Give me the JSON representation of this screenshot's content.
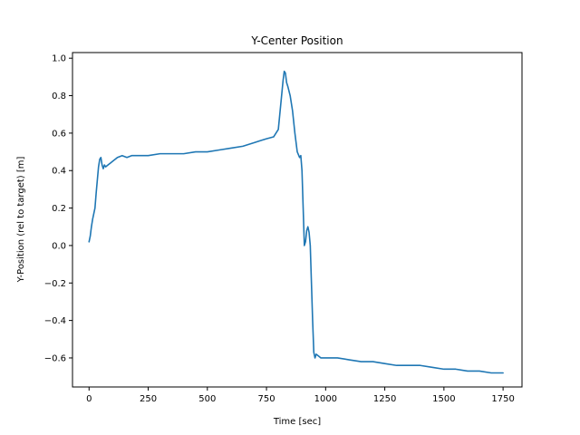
{
  "chart_data": {
    "type": "line",
    "title": "Y-Center Position",
    "xlabel": "Time [sec]",
    "ylabel": "Y-Position (rel to target) [m]",
    "xlim": [
      -70,
      1830
    ],
    "ylim": [
      -0.755,
      1.03
    ],
    "xticks": [
      0,
      250,
      500,
      750,
      1000,
      1250,
      1500,
      1750
    ],
    "xtick_labels": [
      "0",
      "250",
      "500",
      "750",
      "1000",
      "1250",
      "1500",
      "1750"
    ],
    "yticks": [
      -0.6,
      -0.4,
      -0.2,
      0.0,
      0.2,
      0.4,
      0.6,
      0.8,
      1.0
    ],
    "ytick_labels": [
      "−0.6",
      "−0.4",
      "−0.2",
      "0.0",
      "0.2",
      "0.4",
      "0.6",
      "0.8",
      "1.0"
    ],
    "grid": false,
    "legend": "none",
    "series": [
      {
        "color": "#1f77b4",
        "x": [
          0,
          5,
          10,
          15,
          20,
          25,
          30,
          35,
          40,
          45,
          50,
          55,
          60,
          65,
          70,
          80,
          90,
          100,
          120,
          140,
          160,
          180,
          200,
          250,
          300,
          350,
          400,
          450,
          500,
          550,
          600,
          650,
          700,
          725,
          750,
          780,
          800,
          810,
          820,
          825,
          830,
          835,
          840,
          850,
          860,
          870,
          880,
          890,
          895,
          900,
          905,
          910,
          915,
          920,
          925,
          930,
          935,
          940,
          945,
          950,
          955,
          960,
          970,
          980,
          1000,
          1050,
          1100,
          1150,
          1200,
          1250,
          1300,
          1350,
          1400,
          1450,
          1500,
          1550,
          1600,
          1650,
          1700,
          1750
        ],
        "y": [
          0.02,
          0.05,
          0.1,
          0.14,
          0.17,
          0.2,
          0.28,
          0.35,
          0.42,
          0.46,
          0.47,
          0.43,
          0.41,
          0.43,
          0.42,
          0.43,
          0.44,
          0.45,
          0.47,
          0.48,
          0.47,
          0.48,
          0.48,
          0.48,
          0.49,
          0.49,
          0.49,
          0.5,
          0.5,
          0.51,
          0.52,
          0.53,
          0.55,
          0.56,
          0.57,
          0.58,
          0.62,
          0.75,
          0.88,
          0.93,
          0.92,
          0.87,
          0.85,
          0.8,
          0.72,
          0.6,
          0.5,
          0.47,
          0.48,
          0.4,
          0.2,
          0.0,
          0.02,
          0.08,
          0.1,
          0.07,
          0.0,
          -0.2,
          -0.4,
          -0.57,
          -0.6,
          -0.58,
          -0.59,
          -0.6,
          -0.6,
          -0.6,
          -0.61,
          -0.62,
          -0.62,
          -0.63,
          -0.64,
          -0.64,
          -0.64,
          -0.65,
          -0.66,
          -0.66,
          -0.67,
          -0.67,
          -0.68,
          -0.68
        ]
      }
    ]
  }
}
